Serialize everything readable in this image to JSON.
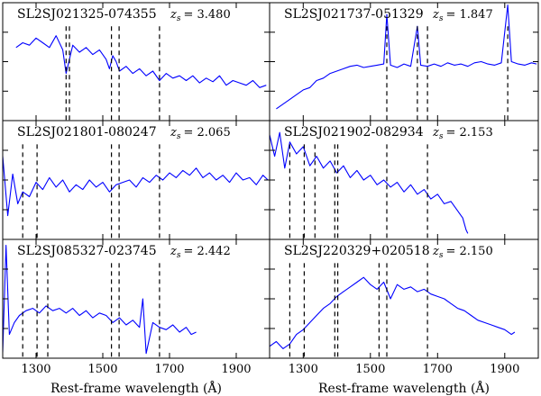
{
  "chart_data": [
    {
      "type": "line",
      "title": "SL2SJ021325-074355",
      "z_label": "z",
      "z_sub": "s",
      "z_value": "= 3.480",
      "xlim": [
        1200,
        2000
      ],
      "xticks": [
        "1300",
        "1500",
        "1700",
        "1900"
      ],
      "xlabel": "",
      "markers": [
        1390,
        1400,
        1526,
        1549,
        1670
      ],
      "series": [
        {
          "x": [
            1240,
            1260,
            1280,
            1300,
            1320,
            1340,
            1360,
            1380,
            1390,
            1400,
            1410,
            1430,
            1450,
            1470,
            1490,
            1510,
            1520,
            1530,
            1540,
            1550,
            1570,
            1590,
            1610,
            1630,
            1650,
            1670,
            1690,
            1710,
            1730,
            1750,
            1770,
            1790,
            1810,
            1830,
            1850,
            1870,
            1890,
            1910,
            1930,
            1950,
            1970,
            1990
          ],
          "y": [
            0.62,
            0.66,
            0.64,
            0.7,
            0.66,
            0.62,
            0.72,
            0.6,
            0.4,
            0.52,
            0.64,
            0.58,
            0.62,
            0.56,
            0.6,
            0.52,
            0.44,
            0.55,
            0.5,
            0.42,
            0.46,
            0.4,
            0.44,
            0.38,
            0.42,
            0.34,
            0.4,
            0.36,
            0.38,
            0.34,
            0.38,
            0.32,
            0.36,
            0.33,
            0.38,
            0.3,
            0.34,
            0.32,
            0.3,
            0.34,
            0.28,
            0.3
          ]
        }
      ]
    },
    {
      "type": "line",
      "title": "SL2SJ021737-051329",
      "z_label": "z",
      "z_sub": "s",
      "z_value": "= 1.847",
      "xlim": [
        1200,
        2000
      ],
      "xticks": [
        "1300",
        "1500",
        "1700",
        "1900"
      ],
      "xlabel": "",
      "markers": [
        1549,
        1640,
        1670,
        1909
      ],
      "series": [
        {
          "x": [
            1220,
            1240,
            1260,
            1280,
            1300,
            1320,
            1340,
            1360,
            1380,
            1400,
            1420,
            1440,
            1460,
            1480,
            1500,
            1520,
            1540,
            1549,
            1560,
            1580,
            1600,
            1620,
            1640,
            1650,
            1670,
            1690,
            1710,
            1730,
            1750,
            1770,
            1790,
            1810,
            1830,
            1850,
            1870,
            1890,
            1909,
            1920,
            1940,
            1960,
            1980,
            1995
          ],
          "y": [
            0.1,
            0.14,
            0.18,
            0.22,
            0.26,
            0.28,
            0.34,
            0.36,
            0.4,
            0.42,
            0.44,
            0.46,
            0.47,
            0.45,
            0.46,
            0.47,
            0.48,
            0.9,
            0.47,
            0.45,
            0.48,
            0.46,
            0.8,
            0.47,
            0.46,
            0.48,
            0.46,
            0.49,
            0.47,
            0.48,
            0.46,
            0.49,
            0.5,
            0.48,
            0.47,
            0.49,
            0.98,
            0.5,
            0.48,
            0.47,
            0.49,
            0.48
          ]
        }
      ]
    },
    {
      "type": "line",
      "title": "SL2SJ021801-080247",
      "z_label": "z",
      "z_sub": "s",
      "z_value": "= 2.065",
      "xlim": [
        1200,
        2000
      ],
      "xticks": [
        "1300",
        "1500",
        "1700",
        "1900"
      ],
      "xlabel": "",
      "markers": [
        1260,
        1303,
        1526,
        1549,
        1670
      ],
      "series": [
        {
          "x": [
            1200,
            1215,
            1230,
            1245,
            1260,
            1280,
            1300,
            1320,
            1340,
            1360,
            1380,
            1400,
            1420,
            1440,
            1460,
            1480,
            1500,
            1520,
            1540,
            1560,
            1580,
            1600,
            1620,
            1640,
            1660,
            1680,
            1700,
            1720,
            1740,
            1760,
            1780,
            1800,
            1820,
            1840,
            1860,
            1880,
            1900,
            1920,
            1940,
            1960,
            1980,
            1995
          ],
          "y": [
            0.7,
            0.2,
            0.55,
            0.3,
            0.4,
            0.36,
            0.48,
            0.42,
            0.52,
            0.44,
            0.5,
            0.4,
            0.46,
            0.42,
            0.5,
            0.44,
            0.48,
            0.4,
            0.46,
            0.48,
            0.5,
            0.44,
            0.52,
            0.48,
            0.54,
            0.5,
            0.56,
            0.52,
            0.58,
            0.54,
            0.6,
            0.52,
            0.56,
            0.5,
            0.54,
            0.48,
            0.56,
            0.5,
            0.52,
            0.46,
            0.54,
            0.5
          ]
        }
      ]
    },
    {
      "type": "line",
      "title": "SL2SJ021902-082934",
      "z_label": "z",
      "z_sub": "s",
      "z_value": "= 2.153",
      "xlim": [
        1200,
        2000
      ],
      "xticks": [
        "1300",
        "1500",
        "1700",
        "1900"
      ],
      "xlabel": "",
      "markers": [
        1260,
        1303,
        1335,
        1394,
        1403,
        1549,
        1670
      ],
      "series": [
        {
          "x": [
            1200,
            1215,
            1230,
            1245,
            1260,
            1280,
            1300,
            1320,
            1340,
            1360,
            1380,
            1400,
            1420,
            1440,
            1460,
            1480,
            1500,
            1520,
            1540,
            1560,
            1580,
            1600,
            1620,
            1640,
            1660,
            1680,
            1700,
            1720,
            1740,
            1760,
            1775,
            1785,
            1790
          ],
          "y": [
            0.88,
            0.7,
            0.9,
            0.6,
            0.82,
            0.72,
            0.78,
            0.62,
            0.7,
            0.6,
            0.66,
            0.56,
            0.62,
            0.52,
            0.58,
            0.5,
            0.54,
            0.46,
            0.5,
            0.44,
            0.48,
            0.4,
            0.46,
            0.38,
            0.42,
            0.34,
            0.38,
            0.3,
            0.32,
            0.24,
            0.18,
            0.08,
            0.05
          ]
        }
      ]
    },
    {
      "type": "line",
      "title": "SL2SJ085327-023745",
      "z_label": "z",
      "z_sub": "s",
      "z_value": "= 2.442",
      "xlim": [
        1200,
        2000
      ],
      "xticks": [
        "1300",
        "1500",
        "1700",
        "1900"
      ],
      "xlabel": "Rest-frame wavelength (Å)",
      "markers": [
        1260,
        1303,
        1335,
        1526,
        1549,
        1670
      ],
      "series": [
        {
          "x": [
            1200,
            1210,
            1220,
            1235,
            1250,
            1270,
            1290,
            1310,
            1330,
            1350,
            1370,
            1390,
            1410,
            1430,
            1450,
            1470,
            1490,
            1510,
            1530,
            1550,
            1570,
            1590,
            1610,
            1620,
            1630,
            1650,
            1670,
            1690,
            1710,
            1730,
            1750,
            1765,
            1780
          ],
          "y": [
            0.05,
            0.95,
            0.2,
            0.3,
            0.36,
            0.4,
            0.42,
            0.38,
            0.44,
            0.4,
            0.42,
            0.38,
            0.42,
            0.36,
            0.4,
            0.34,
            0.38,
            0.36,
            0.3,
            0.34,
            0.28,
            0.32,
            0.26,
            0.5,
            0.04,
            0.3,
            0.26,
            0.24,
            0.28,
            0.22,
            0.26,
            0.2,
            0.22
          ]
        }
      ]
    },
    {
      "type": "line",
      "title": "SL2SJ220329+020518",
      "z_label": "z",
      "z_sub": "s",
      "z_value": "= 2.150",
      "xlim": [
        1200,
        2000
      ],
      "xticks": [
        "1300",
        "1500",
        "1700",
        "1900"
      ],
      "xlabel": "Rest-frame wavelength (Å)",
      "markers": [
        1260,
        1303,
        1394,
        1403,
        1526,
        1549,
        1670
      ],
      "series": [
        {
          "x": [
            1200,
            1220,
            1240,
            1260,
            1280,
            1300,
            1320,
            1340,
            1360,
            1380,
            1400,
            1420,
            1440,
            1460,
            1480,
            1500,
            1520,
            1540,
            1560,
            1580,
            1600,
            1620,
            1640,
            1660,
            1680,
            1700,
            1720,
            1740,
            1760,
            1780,
            1800,
            1820,
            1840,
            1860,
            1880,
            1900,
            1920,
            1930
          ],
          "y": [
            0.1,
            0.14,
            0.08,
            0.12,
            0.2,
            0.24,
            0.3,
            0.36,
            0.42,
            0.46,
            0.52,
            0.56,
            0.6,
            0.64,
            0.68,
            0.62,
            0.58,
            0.64,
            0.5,
            0.62,
            0.58,
            0.6,
            0.56,
            0.58,
            0.54,
            0.52,
            0.5,
            0.46,
            0.42,
            0.4,
            0.36,
            0.32,
            0.3,
            0.28,
            0.26,
            0.24,
            0.2,
            0.22
          ]
        }
      ]
    }
  ]
}
